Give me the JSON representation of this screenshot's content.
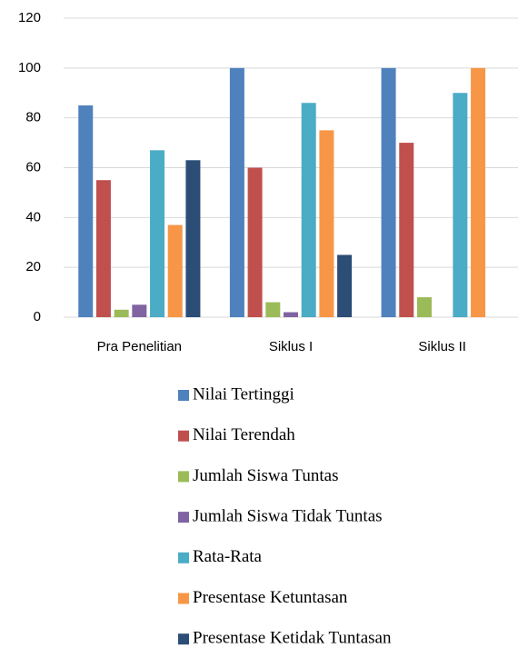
{
  "chart_data": {
    "type": "bar",
    "categories": [
      "Pra Penelitian",
      "Siklus I",
      "Siklus II"
    ],
    "series": [
      {
        "name": "Nilai Tertinggi",
        "color": "#4f81bd",
        "values": [
          85,
          100,
          100
        ]
      },
      {
        "name": "Nilai Terendah",
        "color": "#c0504d",
        "values": [
          55,
          60,
          70
        ]
      },
      {
        "name": "Jumlah Siswa Tuntas",
        "color": "#9bbb59",
        "values": [
          3,
          6,
          8
        ]
      },
      {
        "name": "Jumlah Siswa Tidak Tuntas",
        "color": "#8064a2",
        "values": [
          5,
          2,
          0
        ]
      },
      {
        "name": "Rata-Rata",
        "color": "#4bacc6",
        "values": [
          67,
          86,
          90
        ]
      },
      {
        "name": "Presentase Ketuntasan",
        "color": "#f79646",
        "values": [
          37,
          75,
          100
        ]
      },
      {
        "name": "Presentase Ketidak Tuntasan",
        "color": "#2c4d75",
        "values": [
          63,
          25,
          0
        ]
      }
    ],
    "ylim": [
      0,
      120
    ],
    "yticks": [
      0,
      20,
      40,
      60,
      80,
      100,
      120
    ],
    "grid": true,
    "legend": "bottom"
  }
}
